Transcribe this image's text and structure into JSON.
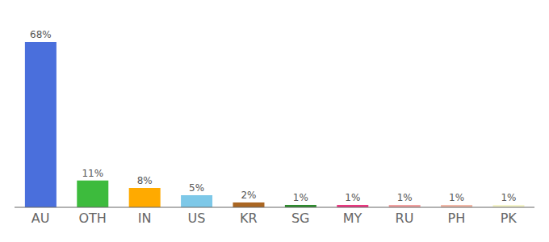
{
  "chart_data": {
    "type": "bar",
    "categories": [
      "AU",
      "OTH",
      "IN",
      "US",
      "KR",
      "SG",
      "MY",
      "RU",
      "PH",
      "PK"
    ],
    "values": [
      68,
      11,
      8,
      5,
      2,
      1,
      1,
      1,
      1,
      1
    ],
    "value_labels": [
      "68%",
      "11%",
      "8%",
      "5%",
      "2%",
      "1%",
      "1%",
      "1%",
      "1%",
      "1%"
    ],
    "colors": [
      "#4a6fdc",
      "#3dbb3d",
      "#ffaa00",
      "#7dc8e8",
      "#aa6622",
      "#2e8b2e",
      "#e83880",
      "#f0a0a0",
      "#f0b8a8",
      "#f5f5cc"
    ],
    "ylim": [
      0,
      76
    ],
    "data_labels": true,
    "tick_labels": "x",
    "grid": false
  }
}
